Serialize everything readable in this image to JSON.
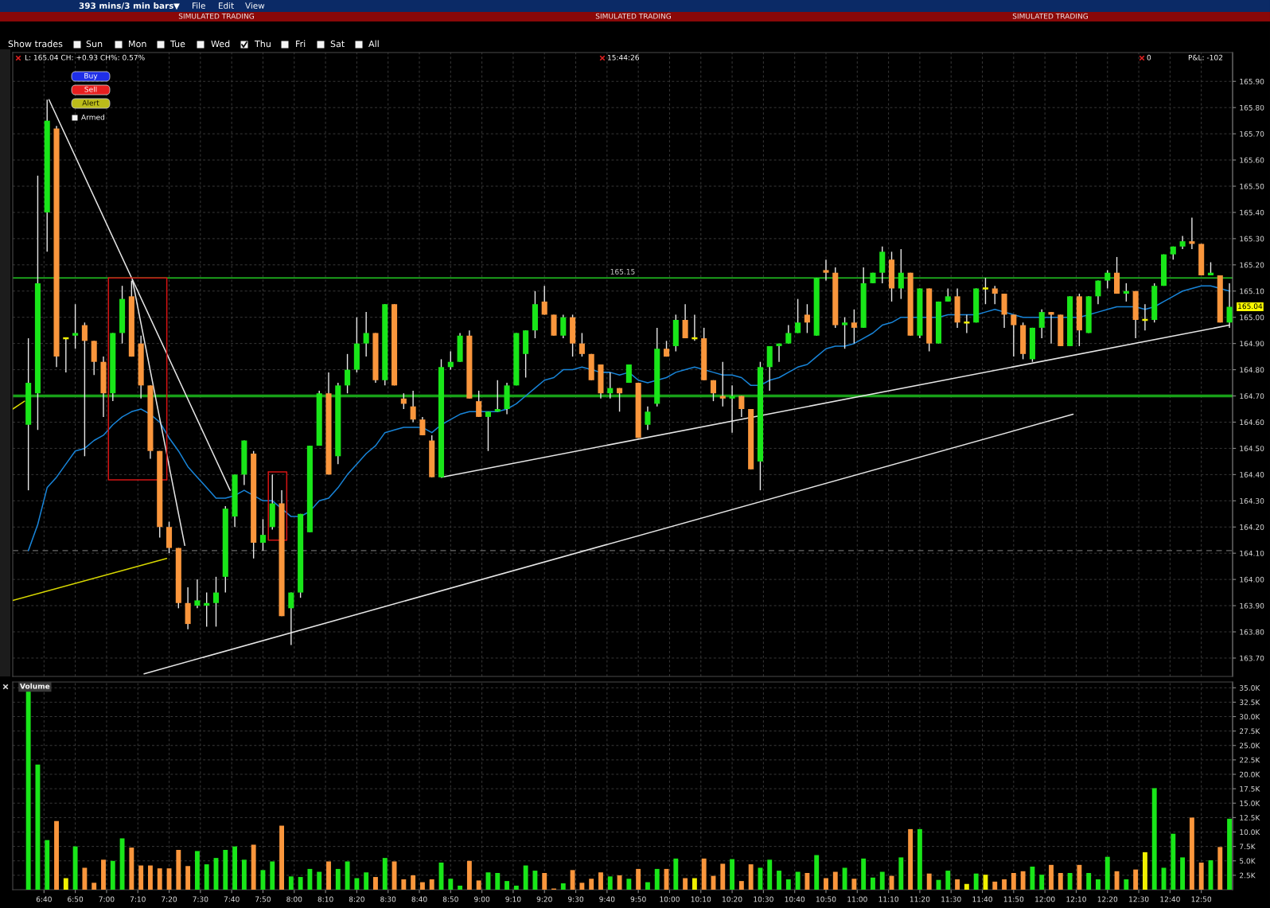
{
  "chart_data": [
    {
      "type": "candlestick",
      "title": "393 mins/3 min bars",
      "x": [
        6.5833,
        6.6333,
        6.6833,
        6.7333,
        6.7833,
        6.8333,
        6.8833,
        6.9333,
        6.9833,
        7.0333,
        7.0833,
        7.1333,
        7.1833,
        7.2333,
        7.2833,
        7.3333,
        7.3833,
        7.4333,
        7.4833,
        7.5333,
        7.5833,
        7.6333,
        7.6833,
        7.7333,
        7.7833,
        7.8333,
        7.8833,
        7.9333,
        7.9833,
        8.0333,
        8.0833,
        8.1333,
        8.1833,
        8.2333,
        8.2833,
        8.3333,
        8.3833,
        8.4333,
        8.4833,
        8.5333,
        8.5833,
        8.6333,
        8.6833,
        8.7333,
        8.7833,
        8.8333,
        8.8833,
        8.9333,
        8.9833,
        9.0333,
        9.0833,
        9.1333,
        9.1833,
        9.2333,
        9.2833,
        9.3333,
        9.3833,
        9.4333,
        9.4833,
        9.5333,
        9.5833,
        9.6333,
        9.6833,
        9.7333,
        9.7833,
        9.8333,
        9.8833,
        9.9333,
        9.9833,
        10.0333,
        10.0833,
        10.1333,
        10.1833,
        10.2333,
        10.2833,
        10.3333,
        10.3833,
        10.4333,
        10.4833,
        10.5333,
        10.5833,
        10.6333,
        10.6833,
        10.7333,
        10.7833,
        10.8333,
        10.8833,
        10.9333,
        10.9833,
        11.0333,
        11.0833,
        11.1333,
        11.1833,
        11.2333,
        11.2833,
        11.3333,
        11.3833,
        11.4333,
        11.4833,
        11.5333,
        11.5833,
        11.6333,
        11.6833,
        11.7333,
        11.7833,
        11.8333,
        11.8833,
        11.9333,
        11.9833,
        12.0333,
        12.0833,
        12.1333,
        12.1833,
        12.2333,
        12.2833,
        12.3333,
        12.3833,
        12.4333,
        12.4833,
        12.5333,
        12.5833,
        12.6333,
        12.6833,
        12.7333,
        12.7833,
        12.8333,
        12.8833,
        12.9333,
        12.9833
      ],
      "ohlc": [
        [
          164.59,
          164.92,
          164.34,
          164.75
        ],
        [
          164.71,
          165.54,
          164.57,
          165.13
        ],
        [
          165.4,
          165.83,
          165.25,
          165.75
        ],
        [
          165.72,
          165.73,
          164.81,
          164.85
        ],
        [
          164.92,
          164.92,
          164.79,
          164.92
        ],
        [
          164.93,
          165.05,
          164.88,
          164.94
        ],
        [
          164.97,
          164.98,
          164.47,
          164.91
        ],
        [
          164.91,
          164.91,
          164.78,
          164.83
        ],
        [
          164.83,
          164.85,
          164.62,
          164.71
        ],
        [
          164.71,
          164.94,
          164.68,
          164.94
        ],
        [
          164.94,
          165.12,
          164.9,
          165.07
        ],
        [
          165.08,
          165.14,
          164.85,
          164.85
        ],
        [
          164.9,
          164.93,
          164.69,
          164.74
        ],
        [
          164.74,
          164.74,
          164.46,
          164.49
        ],
        [
          164.49,
          164.49,
          164.16,
          164.2
        ],
        [
          164.2,
          164.22,
          164.1,
          164.12
        ],
        [
          164.12,
          164.12,
          163.89,
          163.91
        ],
        [
          163.91,
          163.97,
          163.81,
          163.83
        ],
        [
          163.9,
          164.0,
          163.89,
          163.92
        ],
        [
          163.9,
          163.95,
          163.82,
          163.91
        ],
        [
          163.91,
          164.01,
          163.82,
          163.95
        ],
        [
          164.01,
          164.28,
          163.95,
          164.27
        ],
        [
          164.24,
          164.4,
          164.2,
          164.4
        ],
        [
          164.4,
          164.53,
          164.36,
          164.53
        ],
        [
          164.48,
          164.49,
          164.08,
          164.14
        ],
        [
          164.14,
          164.23,
          164.11,
          164.17
        ],
        [
          164.2,
          164.4,
          164.19,
          164.29
        ],
        [
          164.29,
          164.34,
          163.86,
          163.86
        ],
        [
          163.89,
          163.95,
          163.75,
          163.95
        ],
        [
          163.95,
          164.25,
          163.93,
          164.25
        ],
        [
          164.18,
          164.51,
          164.18,
          164.51
        ],
        [
          164.51,
          164.72,
          164.51,
          164.71
        ],
        [
          164.71,
          164.79,
          164.4,
          164.4
        ],
        [
          164.47,
          164.75,
          164.44,
          164.74
        ],
        [
          164.74,
          164.86,
          164.71,
          164.8
        ],
        [
          164.8,
          165.0,
          164.79,
          164.9
        ],
        [
          164.9,
          165.02,
          164.85,
          164.94
        ],
        [
          164.94,
          164.94,
          164.75,
          164.76
        ],
        [
          164.76,
          165.05,
          164.74,
          165.05
        ],
        [
          165.05,
          165.05,
          164.74,
          164.74
        ],
        [
          164.69,
          164.71,
          164.65,
          164.67
        ],
        [
          164.66,
          164.72,
          164.6,
          164.61
        ],
        [
          164.61,
          164.62,
          164.55,
          164.55
        ],
        [
          164.53,
          164.55,
          164.39,
          164.39
        ],
        [
          164.39,
          164.84,
          164.39,
          164.81
        ],
        [
          164.81,
          164.87,
          164.8,
          164.83
        ],
        [
          164.83,
          164.94,
          164.83,
          164.93
        ],
        [
          164.93,
          164.95,
          164.69,
          164.69
        ],
        [
          164.68,
          164.72,
          164.62,
          164.62
        ],
        [
          164.62,
          164.64,
          164.49,
          164.64
        ],
        [
          164.64,
          164.76,
          164.64,
          164.65
        ],
        [
          164.65,
          164.75,
          164.63,
          164.74
        ],
        [
          164.74,
          164.94,
          164.74,
          164.94
        ],
        [
          164.86,
          164.95,
          164.77,
          164.95
        ],
        [
          164.95,
          165.1,
          164.92,
          165.05
        ],
        [
          165.06,
          165.12,
          165.01,
          165.01
        ],
        [
          165.01,
          165.01,
          164.93,
          164.93
        ],
        [
          164.93,
          165.01,
          164.92,
          165.0
        ],
        [
          165.0,
          165.01,
          164.85,
          164.9
        ],
        [
          164.9,
          164.94,
          164.85,
          164.86
        ],
        [
          164.86,
          164.86,
          164.76,
          164.76
        ],
        [
          164.82,
          164.82,
          164.69,
          164.71
        ],
        [
          164.71,
          164.79,
          164.69,
          164.73
        ],
        [
          164.73,
          164.73,
          164.64,
          164.71
        ],
        [
          164.75,
          164.82,
          164.75,
          164.82
        ],
        [
          164.75,
          164.75,
          164.54,
          164.54
        ],
        [
          164.59,
          164.66,
          164.57,
          164.64
        ],
        [
          164.67,
          164.96,
          164.66,
          164.88
        ],
        [
          164.88,
          164.91,
          164.85,
          164.85
        ],
        [
          164.89,
          165.01,
          164.87,
          164.99
        ],
        [
          164.99,
          165.05,
          164.92,
          164.92
        ],
        [
          164.92,
          165.01,
          164.91,
          164.92
        ],
        [
          164.92,
          164.96,
          164.76,
          164.76
        ],
        [
          164.76,
          164.76,
          164.68,
          164.71
        ],
        [
          164.7,
          164.83,
          164.66,
          164.69
        ],
        [
          164.69,
          164.74,
          164.56,
          164.7
        ],
        [
          164.7,
          164.7,
          164.62,
          164.65
        ],
        [
          164.65,
          164.65,
          164.42,
          164.42
        ],
        [
          164.45,
          164.83,
          164.34,
          164.81
        ],
        [
          164.81,
          164.89,
          164.72,
          164.89
        ],
        [
          164.89,
          164.9,
          164.83,
          164.9
        ],
        [
          164.9,
          164.97,
          164.9,
          164.94
        ],
        [
          164.94,
          165.07,
          164.94,
          164.98
        ],
        [
          165.01,
          165.05,
          164.94,
          164.98
        ],
        [
          164.93,
          165.15,
          164.93,
          165.15
        ],
        [
          165.18,
          165.22,
          165.14,
          165.17
        ],
        [
          165.17,
          165.19,
          164.96,
          164.97
        ],
        [
          164.97,
          165.0,
          164.88,
          164.98
        ],
        [
          164.98,
          165.03,
          164.9,
          164.96
        ],
        [
          164.96,
          165.19,
          164.96,
          165.13
        ],
        [
          165.13,
          165.17,
          165.13,
          165.17
        ],
        [
          165.17,
          165.27,
          165.13,
          165.25
        ],
        [
          165.22,
          165.25,
          165.06,
          165.11
        ],
        [
          165.11,
          165.26,
          165.07,
          165.17
        ],
        [
          165.17,
          165.17,
          164.93,
          164.93
        ],
        [
          164.93,
          165.11,
          164.92,
          165.11
        ],
        [
          165.11,
          165.11,
          164.87,
          164.9
        ],
        [
          164.9,
          165.06,
          164.9,
          165.06
        ],
        [
          165.06,
          165.11,
          165.06,
          165.08
        ],
        [
          165.08,
          165.11,
          164.96,
          164.98
        ],
        [
          164.98,
          165.01,
          164.94,
          164.98
        ],
        [
          164.98,
          165.11,
          164.98,
          165.11
        ],
        [
          165.11,
          165.15,
          165.05,
          165.11
        ],
        [
          165.11,
          165.12,
          165.05,
          165.09
        ],
        [
          165.09,
          165.09,
          164.96,
          165.01
        ],
        [
          165.01,
          165.01,
          164.85,
          164.97
        ],
        [
          164.97,
          164.98,
          164.84,
          164.86
        ],
        [
          164.84,
          164.96,
          164.83,
          164.96
        ],
        [
          164.96,
          165.03,
          164.92,
          165.02
        ],
        [
          165.02,
          165.02,
          164.9,
          165.01
        ],
        [
          165.01,
          165.01,
          164.89,
          164.89
        ],
        [
          164.89,
          165.08,
          164.89,
          165.08
        ],
        [
          165.08,
          165.09,
          164.89,
          164.95
        ],
        [
          164.94,
          165.08,
          164.94,
          165.08
        ],
        [
          165.08,
          165.14,
          165.05,
          165.14
        ],
        [
          165.14,
          165.18,
          165.11,
          165.17
        ],
        [
          165.17,
          165.23,
          165.09,
          165.09
        ],
        [
          165.09,
          165.13,
          165.06,
          165.1
        ],
        [
          165.1,
          165.1,
          164.92,
          164.99
        ],
        [
          164.99,
          165.05,
          164.95,
          164.99
        ],
        [
          164.99,
          165.13,
          164.98,
          165.12
        ],
        [
          165.12,
          165.24,
          165.12,
          165.24
        ],
        [
          165.24,
          165.27,
          165.22,
          165.27
        ],
        [
          165.27,
          165.31,
          165.26,
          165.29
        ],
        [
          165.29,
          165.38,
          165.26,
          165.28
        ],
        [
          165.28,
          165.28,
          165.16,
          165.16
        ],
        [
          165.16,
          165.21,
          165.16,
          165.17
        ],
        [
          165.16,
          165.16,
          164.98,
          164.98
        ],
        [
          164.98,
          165.13,
          164.96,
          165.04
        ]
      ],
      "colors": [
        "#19e619",
        "#19e619",
        "#19e619",
        "#fa963c",
        "#f0f000",
        "#19e619",
        "#fa963c",
        "#fa963c",
        "#fa963c",
        "#19e619",
        "#19e619",
        "#fa963c",
        "#fa963c",
        "#fa963c",
        "#fa963c",
        "#fa963c",
        "#fa963c",
        "#fa963c",
        "#19e619",
        "#19e619",
        "#19e619",
        "#19e619",
        "#19e619",
        "#19e619",
        "#fa963c",
        "#19e619",
        "#19e619",
        "#fa963c",
        "#19e619",
        "#19e619",
        "#19e619",
        "#19e619",
        "#fa963c",
        "#19e619",
        "#19e619",
        "#19e619",
        "#19e619",
        "#fa963c",
        "#19e619",
        "#fa963c",
        "#fa963c",
        "#fa963c",
        "#fa963c",
        "#fa963c",
        "#19e619",
        "#19e619",
        "#19e619",
        "#fa963c",
        "#fa963c",
        "#19e619",
        "#19e619",
        "#19e619",
        "#19e619",
        "#19e619",
        "#19e619",
        "#fa963c",
        "#fa963c",
        "#19e619",
        "#fa963c",
        "#fa963c",
        "#fa963c",
        "#fa963c",
        "#19e619",
        "#fa963c",
        "#19e619",
        "#fa963c",
        "#19e619",
        "#19e619",
        "#fa963c",
        "#19e619",
        "#fa963c",
        "#f0f000",
        "#fa963c",
        "#fa963c",
        "#fa963c",
        "#19e619",
        "#fa963c",
        "#fa963c",
        "#19e619",
        "#19e619",
        "#19e619",
        "#19e619",
        "#19e619",
        "#fa963c",
        "#19e619",
        "#fa963c",
        "#fa963c",
        "#19e619",
        "#fa963c",
        "#19e619",
        "#19e619",
        "#19e619",
        "#fa963c",
        "#19e619",
        "#fa963c",
        "#19e619",
        "#fa963c",
        "#19e619",
        "#19e619",
        "#fa963c",
        "#f0f000",
        "#19e619",
        "#f0f000",
        "#fa963c",
        "#fa963c",
        "#fa963c",
        "#fa963c",
        "#19e619",
        "#19e619",
        "#fa963c",
        "#fa963c",
        "#19e619",
        "#fa963c",
        "#19e619",
        "#19e619",
        "#19e619",
        "#fa963c",
        "#19e619",
        "#fa963c",
        "#f0f000",
        "#19e619",
        "#19e619",
        "#19e619",
        "#19e619",
        "#fa963c",
        "#fa963c",
        "#19e619",
        "#fa963c",
        "#19e619"
      ],
      "series": [
        {
          "type": "line",
          "color": "#1884d8",
          "values": [
            164.11,
            164.21,
            164.35,
            164.39,
            164.44,
            164.49,
            164.5,
            164.53,
            164.55,
            164.59,
            164.62,
            164.64,
            164.65,
            164.63,
            164.6,
            164.54,
            164.49,
            164.43,
            164.39,
            164.35,
            164.31,
            164.31,
            164.32,
            164.34,
            164.32,
            164.3,
            164.3,
            164.27,
            164.24,
            164.24,
            164.26,
            164.3,
            164.31,
            164.35,
            164.4,
            164.44,
            164.48,
            164.51,
            164.56,
            164.57,
            164.58,
            164.58,
            164.58,
            164.56,
            164.59,
            164.61,
            164.63,
            164.64,
            164.64,
            164.64,
            164.64,
            164.65,
            164.67,
            164.7,
            164.73,
            164.76,
            164.77,
            164.8,
            164.8,
            164.81,
            164.8,
            164.79,
            164.79,
            164.78,
            164.79,
            164.76,
            164.75,
            164.76,
            164.77,
            164.79,
            164.8,
            164.81,
            164.8,
            164.79,
            164.78,
            164.78,
            164.77,
            164.74,
            164.74,
            164.76,
            164.77,
            164.79,
            164.81,
            164.82,
            164.85,
            164.88,
            164.89,
            164.89,
            164.9,
            164.92,
            164.94,
            164.97,
            164.98,
            165.0,
            165.0,
            165.0,
            165.0,
            165.0,
            165.01,
            165.01,
            165.01,
            165.01,
            165.02,
            165.03,
            165.02,
            165.01,
            165.0,
            165.0,
            165.0,
            165.0,
            165.0,
            165.0,
            165.0,
            165.01,
            165.02,
            165.03,
            165.04,
            165.04,
            165.04,
            165.03,
            165.04,
            165.06,
            165.08,
            165.1,
            165.11,
            165.12,
            165.12,
            165.11,
            165.1
          ]
        },
        {
          "type": "line",
          "color": "#e6e6e6",
          "x": [
            6.6933,
            7.6583
          ],
          "values": [
            165.83,
            164.34
          ]
        },
        {
          "type": "line",
          "color": "#e6e6e6",
          "x": [
            7.1383,
            7.4167
          ],
          "values": [
            165.14,
            164.13
          ]
        },
        {
          "type": "line",
          "color": "#e6e6e6",
          "x": [
            7.2,
            12.15
          ],
          "values": [
            163.64,
            164.63
          ]
        },
        {
          "type": "line",
          "color": "#e6e6e6",
          "x": [
            8.7833,
            12.9833
          ],
          "values": [
            164.39,
            164.97
          ]
        },
        {
          "type": "line",
          "color": "#d8d800",
          "x": [
            6.5,
            7.32
          ],
          "values": [
            163.92,
            164.08
          ]
        },
        {
          "type": "line",
          "color": "#d8d800",
          "x": [
            6.5,
            6.563
          ],
          "values": [
            164.65,
            164.68
          ]
        },
        {
          "type": "line",
          "color": "#d41414",
          "x": [
            7.01,
            7.321,
            7.321
          ],
          "values": [
            165.15,
            165.15,
            164.38
          ]
        },
        {
          "type": "line",
          "color": "#d41414",
          "x": [
            7.321,
            7.01,
            7.01
          ],
          "values": [
            164.38,
            164.38,
            165.15
          ]
        },
        {
          "type": "line",
          "color": "#d41414",
          "x": [
            7.862,
            7.96,
            7.96
          ],
          "values": [
            164.41,
            164.41,
            164.15
          ]
        },
        {
          "type": "line",
          "color": "#d41414",
          "x": [
            7.96,
            7.862,
            7.862
          ],
          "values": [
            164.15,
            164.15,
            164.41
          ]
        }
      ],
      "ref_lines": [
        {
          "axis": "y",
          "value": 165.15,
          "label": "165.15",
          "color": "#22c822"
        },
        {
          "axis": "y",
          "value": 164.7,
          "color": "#18a018"
        },
        {
          "axis": "y",
          "value": 164.11,
          "color": "#6a6a6a",
          "line_style": "dashed"
        }
      ],
      "xlim": [
        6.5,
        13.0
      ],
      "ylim": [
        163.63,
        166.01
      ],
      "xticks": [
        {
          "value": 6.6667,
          "label": null
        },
        {
          "value": 6.8333,
          "label": null
        },
        {
          "value": 7,
          "label": null
        },
        {
          "value": 7.1667,
          "label": null
        },
        {
          "value": 7.3333,
          "label": null
        },
        {
          "value": 7.5,
          "label": null
        },
        {
          "value": 7.6667,
          "label": null
        },
        {
          "value": 7.8333,
          "label": null
        },
        {
          "value": 8,
          "label": null
        },
        {
          "value": 8.1667,
          "label": null
        },
        {
          "value": 8.3333,
          "label": null
        },
        {
          "value": 8.5,
          "label": null
        },
        {
          "value": 8.6667,
          "label": null
        },
        {
          "value": 8.8333,
          "label": null
        },
        {
          "value": 9,
          "label": null
        },
        {
          "value": 9.1667,
          "label": null
        },
        {
          "value": 9.3333,
          "label": null
        },
        {
          "value": 9.5,
          "label": null
        },
        {
          "value": 9.6667,
          "label": null
        },
        {
          "value": 9.8333,
          "label": null
        },
        {
          "value": 10,
          "label": null
        },
        {
          "value": 10.1667,
          "label": null
        },
        {
          "value": 10.3333,
          "label": null
        },
        {
          "value": 10.5,
          "label": null
        },
        {
          "value": 10.6667,
          "label": null
        },
        {
          "value": 10.8333,
          "label": null
        },
        {
          "value": 11,
          "label": null
        },
        {
          "value": 11.1667,
          "label": null
        },
        {
          "value": 11.3333,
          "label": null
        },
        {
          "value": 11.5,
          "label": null
        },
        {
          "value": 11.6667,
          "label": null
        },
        {
          "value": 11.8333,
          "label": null
        },
        {
          "value": 12,
          "label": null
        },
        {
          "value": 12.1667,
          "label": null
        },
        {
          "value": 12.3333,
          "label": null
        },
        {
          "value": 12.5,
          "label": null
        },
        {
          "value": 12.6667,
          "label": null
        },
        {
          "value": 12.8333,
          "label": null
        }
      ],
      "yticks": [
        {
          "value": 163.7,
          "label": "163.70"
        },
        {
          "value": 163.8,
          "label": "163.80"
        },
        {
          "value": 163.9,
          "label": "163.90"
        },
        {
          "value": 164.0,
          "label": "164.00"
        },
        {
          "value": 164.1,
          "label": "164.10"
        },
        {
          "value": 164.2,
          "label": "164.20"
        },
        {
          "value": 164.3,
          "label": "164.30"
        },
        {
          "value": 164.4,
          "label": "164.40"
        },
        {
          "value": 164.5,
          "label": "164.50"
        },
        {
          "value": 164.6,
          "label": "164.60"
        },
        {
          "value": 164.7,
          "label": "164.70"
        },
        {
          "value": 164.8,
          "label": "164.80"
        },
        {
          "value": 164.9,
          "label": "164.90"
        },
        {
          "value": 165.0,
          "label": "165.00"
        },
        {
          "value": 165.1,
          "label": "165.10"
        },
        {
          "value": 165.2,
          "label": "165.20"
        },
        {
          "value": 165.3,
          "label": "165.30"
        },
        {
          "value": 165.4,
          "label": "165.40"
        },
        {
          "value": 165.5,
          "label": "165.50"
        },
        {
          "value": 165.6,
          "label": "165.60"
        },
        {
          "value": 165.7,
          "label": "165.70"
        },
        {
          "value": 165.8,
          "label": "165.80"
        },
        {
          "value": 165.9,
          "label": "165.90"
        }
      ],
      "tick_labels": "y",
      "grid": true,
      "annotations": [
        "File",
        "Edit",
        "View",
        "SIMULATED TRADING",
        "SIMULATED TRADING",
        "SIMULATED TRADING",
        "Show trades",
        "Sun",
        "Mon",
        "Tue",
        "Wed",
        "Thu",
        "Fri",
        "Sat",
        "All",
        "L: 165.04 CH: +0.93 CH%: 0.57%",
        "15:44:26",
        "0",
        "P&L: -102",
        "Buy",
        "Sell",
        "Alert",
        "Armed",
        "165.04"
      ]
    },
    {
      "type": "bar",
      "x": [
        6.5833,
        6.6333,
        6.6833,
        6.7333,
        6.7833,
        6.8333,
        6.8833,
        6.9333,
        6.9833,
        7.0333,
        7.0833,
        7.1333,
        7.1833,
        7.2333,
        7.2833,
        7.3333,
        7.3833,
        7.4333,
        7.4833,
        7.5333,
        7.5833,
        7.6333,
        7.6833,
        7.7333,
        7.7833,
        7.8333,
        7.8833,
        7.9333,
        7.9833,
        8.0333,
        8.0833,
        8.1333,
        8.1833,
        8.2333,
        8.2833,
        8.3333,
        8.3833,
        8.4333,
        8.4833,
        8.5333,
        8.5833,
        8.6333,
        8.6833,
        8.7333,
        8.7833,
        8.8333,
        8.8833,
        8.9333,
        8.9833,
        9.0333,
        9.0833,
        9.1333,
        9.1833,
        9.2333,
        9.2833,
        9.3333,
        9.3833,
        9.4333,
        9.4833,
        9.5333,
        9.5833,
        9.6333,
        9.6833,
        9.7333,
        9.7833,
        9.8333,
        9.8833,
        9.9333,
        9.9833,
        10.0333,
        10.0833,
        10.1333,
        10.1833,
        10.2333,
        10.2833,
        10.3333,
        10.3833,
        10.4333,
        10.4833,
        10.5333,
        10.5833,
        10.6333,
        10.6833,
        10.7333,
        10.7833,
        10.8333,
        10.8833,
        10.9333,
        10.9833,
        11.0333,
        11.0833,
        11.1333,
        11.1833,
        11.2333,
        11.2833,
        11.3333,
        11.3833,
        11.4333,
        11.4833,
        11.5333,
        11.5833,
        11.6333,
        11.6833,
        11.7333,
        11.7833,
        11.8333,
        11.8833,
        11.9333,
        11.9833,
        12.0333,
        12.0833,
        12.1333,
        12.1833,
        12.2333,
        12.2833,
        12.3333,
        12.3833,
        12.4333,
        12.4833,
        12.5333,
        12.5833,
        12.6333,
        12.6833,
        12.7333,
        12.7833,
        12.8333,
        12.8833,
        12.9333,
        12.9833
      ],
      "values": [
        34500,
        21700,
        8600,
        11900,
        2000,
        7500,
        3800,
        1200,
        5200,
        5000,
        8900,
        7300,
        4200,
        4200,
        3700,
        3700,
        6900,
        4100,
        6700,
        4400,
        5500,
        6900,
        7500,
        5200,
        7800,
        3400,
        4900,
        11100,
        2300,
        2200,
        3600,
        3100,
        4900,
        3600,
        4900,
        2000,
        3000,
        2200,
        5500,
        4900,
        1800,
        2500,
        1300,
        1800,
        4700,
        1900,
        700,
        5000,
        1600,
        3000,
        2900,
        1500,
        700,
        4200,
        3300,
        2900,
        200,
        1100,
        3400,
        1200,
        1900,
        3000,
        2300,
        2500,
        1900,
        3600,
        1300,
        3600,
        3600,
        5400,
        2000,
        2000,
        5400,
        2400,
        4500,
        5300,
        1500,
        4400,
        3800,
        5200,
        3300,
        1800,
        3100,
        2900,
        6000,
        2000,
        3100,
        3800,
        1900,
        5400,
        2100,
        3100,
        2400,
        5600,
        10500,
        10500,
        2800,
        1700,
        3300,
        1800,
        1000,
        2800,
        2600,
        1400,
        1800,
        2900,
        3200,
        4000,
        2600,
        4300,
        2900,
        2900,
        4300,
        2900,
        1800,
        5700,
        3200,
        1800,
        3500,
        6500,
        17600,
        3800,
        9700,
        5600,
        12500,
        4700,
        5100,
        7400,
        12300
      ],
      "colors": [
        "#19e619",
        "#19e619",
        "#19e619",
        "#fa963c",
        "#f0f000",
        "#19e619",
        "#fa963c",
        "#fa963c",
        "#fa963c",
        "#19e619",
        "#19e619",
        "#fa963c",
        "#fa963c",
        "#fa963c",
        "#fa963c",
        "#fa963c",
        "#fa963c",
        "#fa963c",
        "#19e619",
        "#19e619",
        "#19e619",
        "#19e619",
        "#19e619",
        "#19e619",
        "#fa963c",
        "#19e619",
        "#19e619",
        "#fa963c",
        "#19e619",
        "#19e619",
        "#19e619",
        "#19e619",
        "#fa963c",
        "#19e619",
        "#19e619",
        "#19e619",
        "#19e619",
        "#fa963c",
        "#19e619",
        "#fa963c",
        "#fa963c",
        "#fa963c",
        "#fa963c",
        "#fa963c",
        "#19e619",
        "#19e619",
        "#19e619",
        "#fa963c",
        "#fa963c",
        "#19e619",
        "#19e619",
        "#19e619",
        "#19e619",
        "#19e619",
        "#19e619",
        "#fa963c",
        "#fa963c",
        "#19e619",
        "#fa963c",
        "#fa963c",
        "#fa963c",
        "#fa963c",
        "#19e619",
        "#fa963c",
        "#19e619",
        "#fa963c",
        "#19e619",
        "#19e619",
        "#fa963c",
        "#19e619",
        "#fa963c",
        "#f0f000",
        "#fa963c",
        "#fa963c",
        "#fa963c",
        "#19e619",
        "#fa963c",
        "#fa963c",
        "#19e619",
        "#19e619",
        "#19e619",
        "#19e619",
        "#19e619",
        "#fa963c",
        "#19e619",
        "#fa963c",
        "#fa963c",
        "#19e619",
        "#fa963c",
        "#19e619",
        "#19e619",
        "#19e619",
        "#fa963c",
        "#19e619",
        "#fa963c",
        "#19e619",
        "#fa963c",
        "#19e619",
        "#19e619",
        "#fa963c",
        "#f0f000",
        "#19e619",
        "#f0f000",
        "#fa963c",
        "#fa963c",
        "#fa963c",
        "#fa963c",
        "#19e619",
        "#19e619",
        "#fa963c",
        "#fa963c",
        "#19e619",
        "#fa963c",
        "#19e619",
        "#19e619",
        "#19e619",
        "#fa963c",
        "#19e619",
        "#fa963c",
        "#f0f000",
        "#19e619",
        "#19e619",
        "#19e619",
        "#19e619",
        "#fa963c",
        "#fa963c",
        "#19e619",
        "#fa963c",
        "#19e619"
      ],
      "xlim": [
        6.5,
        13.0
      ],
      "ylim": [
        0,
        36000
      ],
      "xticks": [
        {
          "value": 6.6667,
          "label": "6:40"
        },
        {
          "value": 6.8333,
          "label": "6:50"
        },
        {
          "value": 7,
          "label": "7:00"
        },
        {
          "value": 7.1667,
          "label": "7:10"
        },
        {
          "value": 7.3333,
          "label": "7:20"
        },
        {
          "value": 7.5,
          "label": "7:30"
        },
        {
          "value": 7.6667,
          "label": "7:40"
        },
        {
          "value": 7.8333,
          "label": "7:50"
        },
        {
          "value": 8,
          "label": "8:00"
        },
        {
          "value": 8.1667,
          "label": "8:10"
        },
        {
          "value": 8.3333,
          "label": "8:20"
        },
        {
          "value": 8.5,
          "label": "8:30"
        },
        {
          "value": 8.6667,
          "label": "8:40"
        },
        {
          "value": 8.8333,
          "label": "8:50"
        },
        {
          "value": 9,
          "label": "9:00"
        },
        {
          "value": 9.1667,
          "label": "9:10"
        },
        {
          "value": 9.3333,
          "label": "9:20"
        },
        {
          "value": 9.5,
          "label": "9:30"
        },
        {
          "value": 9.6667,
          "label": "9:40"
        },
        {
          "value": 9.8333,
          "label": "9:50"
        },
        {
          "value": 10,
          "label": "10:00"
        },
        {
          "value": 10.1667,
          "label": "10:10"
        },
        {
          "value": 10.3333,
          "label": "10:20"
        },
        {
          "value": 10.5,
          "label": "10:30"
        },
        {
          "value": 10.6667,
          "label": "10:40"
        },
        {
          "value": 10.8333,
          "label": "10:50"
        },
        {
          "value": 11,
          "label": "11:00"
        },
        {
          "value": 11.1667,
          "label": "11:10"
        },
        {
          "value": 11.3333,
          "label": "11:20"
        },
        {
          "value": 11.5,
          "label": "11:30"
        },
        {
          "value": 11.6667,
          "label": "11:40"
        },
        {
          "value": 11.8333,
          "label": "11:50"
        },
        {
          "value": 12,
          "label": "12:00"
        },
        {
          "value": 12.1667,
          "label": "12:10"
        },
        {
          "value": 12.3333,
          "label": "12:20"
        },
        {
          "value": 12.5,
          "label": "12:30"
        },
        {
          "value": 12.6667,
          "label": "12:40"
        },
        {
          "value": 12.8333,
          "label": "12:50"
        }
      ],
      "yticks": [
        {
          "value": 2500,
          "label": "2.5K"
        },
        {
          "value": 5000,
          "label": "5.0K"
        },
        {
          "value": 7500,
          "label": "7.5K"
        },
        {
          "value": 10000,
          "label": "10.0K"
        },
        {
          "value": 12500,
          "label": "12.5K"
        },
        {
          "value": 15000,
          "label": "15.0K"
        },
        {
          "value": 17500,
          "label": "17.5K"
        },
        {
          "value": 20000,
          "label": "20.0K"
        },
        {
          "value": 22500,
          "label": "22.5K"
        },
        {
          "value": 25000,
          "label": "25.0K"
        },
        {
          "value": 27500,
          "label": "27.5K"
        },
        {
          "value": 30000,
          "label": "30.0K"
        },
        {
          "value": 32500,
          "label": "32.5K"
        },
        {
          "value": 35000,
          "label": "35.0K"
        }
      ],
      "grid": true,
      "annotations": [
        "Volume"
      ]
    }
  ]
}
